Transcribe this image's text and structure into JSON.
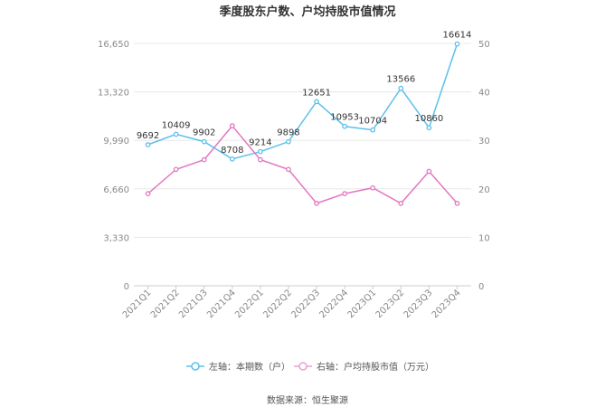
{
  "chart_data": {
    "type": "line",
    "title": "季度股东户数、户均持股市值情况",
    "categories": [
      "2021Q1",
      "2021Q2",
      "2021Q3",
      "2021Q4",
      "2022Q1",
      "2022Q2",
      "2022Q3",
      "2022Q4",
      "2023Q1",
      "2023Q2",
      "2023Q3",
      "2023Q4"
    ],
    "y_left": {
      "ticks": [
        0,
        3330,
        6660,
        9990,
        13320,
        16650
      ],
      "tick_labels": [
        "0",
        "3,330",
        "6,660",
        "9,990",
        "13,320",
        "16,650"
      ],
      "ylim": [
        0,
        16650
      ]
    },
    "y_right": {
      "ticks": [
        0,
        10,
        20,
        30,
        40,
        50
      ],
      "tick_labels": [
        "0",
        "10",
        "20",
        "30",
        "40",
        "50"
      ],
      "ylim": [
        0,
        50
      ]
    },
    "series": [
      {
        "name": "左轴：本期数（户）",
        "axis": "left",
        "color": "#5bc0eb",
        "show_labels": true,
        "values": [
          9692,
          10409,
          9902,
          8708,
          9214,
          9898,
          12651,
          10953,
          10704,
          13566,
          10860,
          16614
        ]
      },
      {
        "axis": "right",
        "color": "#e377c2",
        "show_labels": false,
        "values": [
          19,
          24,
          26,
          33,
          26,
          24,
          17,
          19,
          20.2,
          17,
          23.6,
          17
        ]
      }
    ],
    "legend": {
      "position": "bottom",
      "items": [
        {
          "label": "左轴：本期数（户）",
          "color": "#5bc0eb"
        },
        {
          "label": "右轴：户均持股市值（万元）",
          "color": "#e8a0d4"
        }
      ]
    },
    "grid": true,
    "source": "数据来源：恒生聚源"
  }
}
